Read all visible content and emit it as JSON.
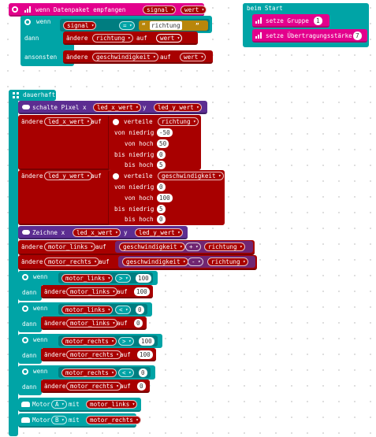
{
  "colors": {
    "radio": "#E3008C",
    "radio_dark": "#B0006D",
    "logic": "#00A4A6",
    "logic_dark": "#007D80",
    "variables": "#A80000",
    "variables_dark": "#7A0000",
    "led": "#5C2D91",
    "led_dark": "#3F1F66",
    "basic": "#1E90FF",
    "math": "#712672",
    "text": "#B8860B"
  },
  "received": {
    "header": "wenn Datenpaket empfangen",
    "param1": "signal",
    "param2": "wert",
    "if_label": "wenn",
    "cond_var": "signal",
    "cond_op": "=",
    "cond_str": "richtung",
    "then_label": "dann",
    "then_prefix": "ändere",
    "then_var": "richtung",
    "then_mid": "auf",
    "then_val": "wert",
    "else_label": "ansonsten",
    "else_prefix": "ändere",
    "else_var": "geschwindigkeit",
    "else_mid": "auf",
    "else_val": "wert"
  },
  "onstart": {
    "header": "beim Start",
    "group_label": "setze Gruppe",
    "group_value": "1",
    "power_label": "setze Übertragungsstärke",
    "power_value": "7"
  },
  "forever": {
    "header": "dauerhaft",
    "unplot": {
      "label": "schalte Pixel x",
      "x": "led_x_wert",
      "y_label": "y",
      "y": "led_y_wert"
    },
    "mapx": {
      "prefix": "ändere",
      "var": "led_x_wert",
      "mid": "auf",
      "fn": "verteile",
      "src": "richtung",
      "l1": "von niedrig",
      "v1": "-50",
      "l2": "von hoch",
      "v2": "50",
      "l3": "bis niedrig",
      "v3": "0",
      "l4": "bis hoch",
      "v4": "5"
    },
    "mapy": {
      "prefix": "ändere",
      "var": "led_y_wert",
      "mid": "auf",
      "fn": "verteile",
      "src": "geschwindigkeit",
      "l1": "von niedrig",
      "v1": "0",
      "l2": "von hoch",
      "v2": "100",
      "l3": "bis niedrig",
      "v3": "5",
      "l4": "bis hoch",
      "v4": "0"
    },
    "plot": {
      "label": "Zeichne x",
      "x": "led_x_wert",
      "y_label": "y",
      "y": "led_y_wert"
    },
    "setml": {
      "prefix": "ändere",
      "var": "motor_links",
      "mid": "auf",
      "a": "geschwindigkeit",
      "op": "+",
      "b": "richtung"
    },
    "setmr": {
      "prefix": "ändere",
      "var": "motor_rechts",
      "mid": "auf",
      "a": "geschwindigkeit",
      "op": "-",
      "b": "richtung"
    },
    "if1": {
      "if": "wenn",
      "var": "motor_links",
      "op": ">",
      "num": "100",
      "then": "dann",
      "prefix": "ändere",
      "tvar": "motor_links",
      "mid": "auf",
      "val": "100"
    },
    "if2": {
      "if": "wenn",
      "var": "motor_links",
      "op": "<",
      "num": "0",
      "then": "dann",
      "prefix": "ändere",
      "tvar": "motor_links",
      "mid": "auf",
      "val": "0"
    },
    "if3": {
      "if": "wenn",
      "var": "motor_rechts",
      "op": ">",
      "num": "100",
      "then": "dann",
      "prefix": "ändere",
      "tvar": "motor_rechts",
      "mid": "auf",
      "val": "100"
    },
    "if4": {
      "if": "wenn",
      "var": "motor_rechts",
      "op": "<",
      "num": "0",
      "then": "dann",
      "prefix": "ändere",
      "tvar": "motor_rechts",
      "mid": "auf",
      "val": "0"
    },
    "motorA": {
      "label": "Motor",
      "motor": "A",
      "mid": "mit",
      "var": "motor_links"
    },
    "motorB": {
      "label": "Motor",
      "motor": "B",
      "mid": "mit",
      "var": "motor_rechts"
    }
  }
}
